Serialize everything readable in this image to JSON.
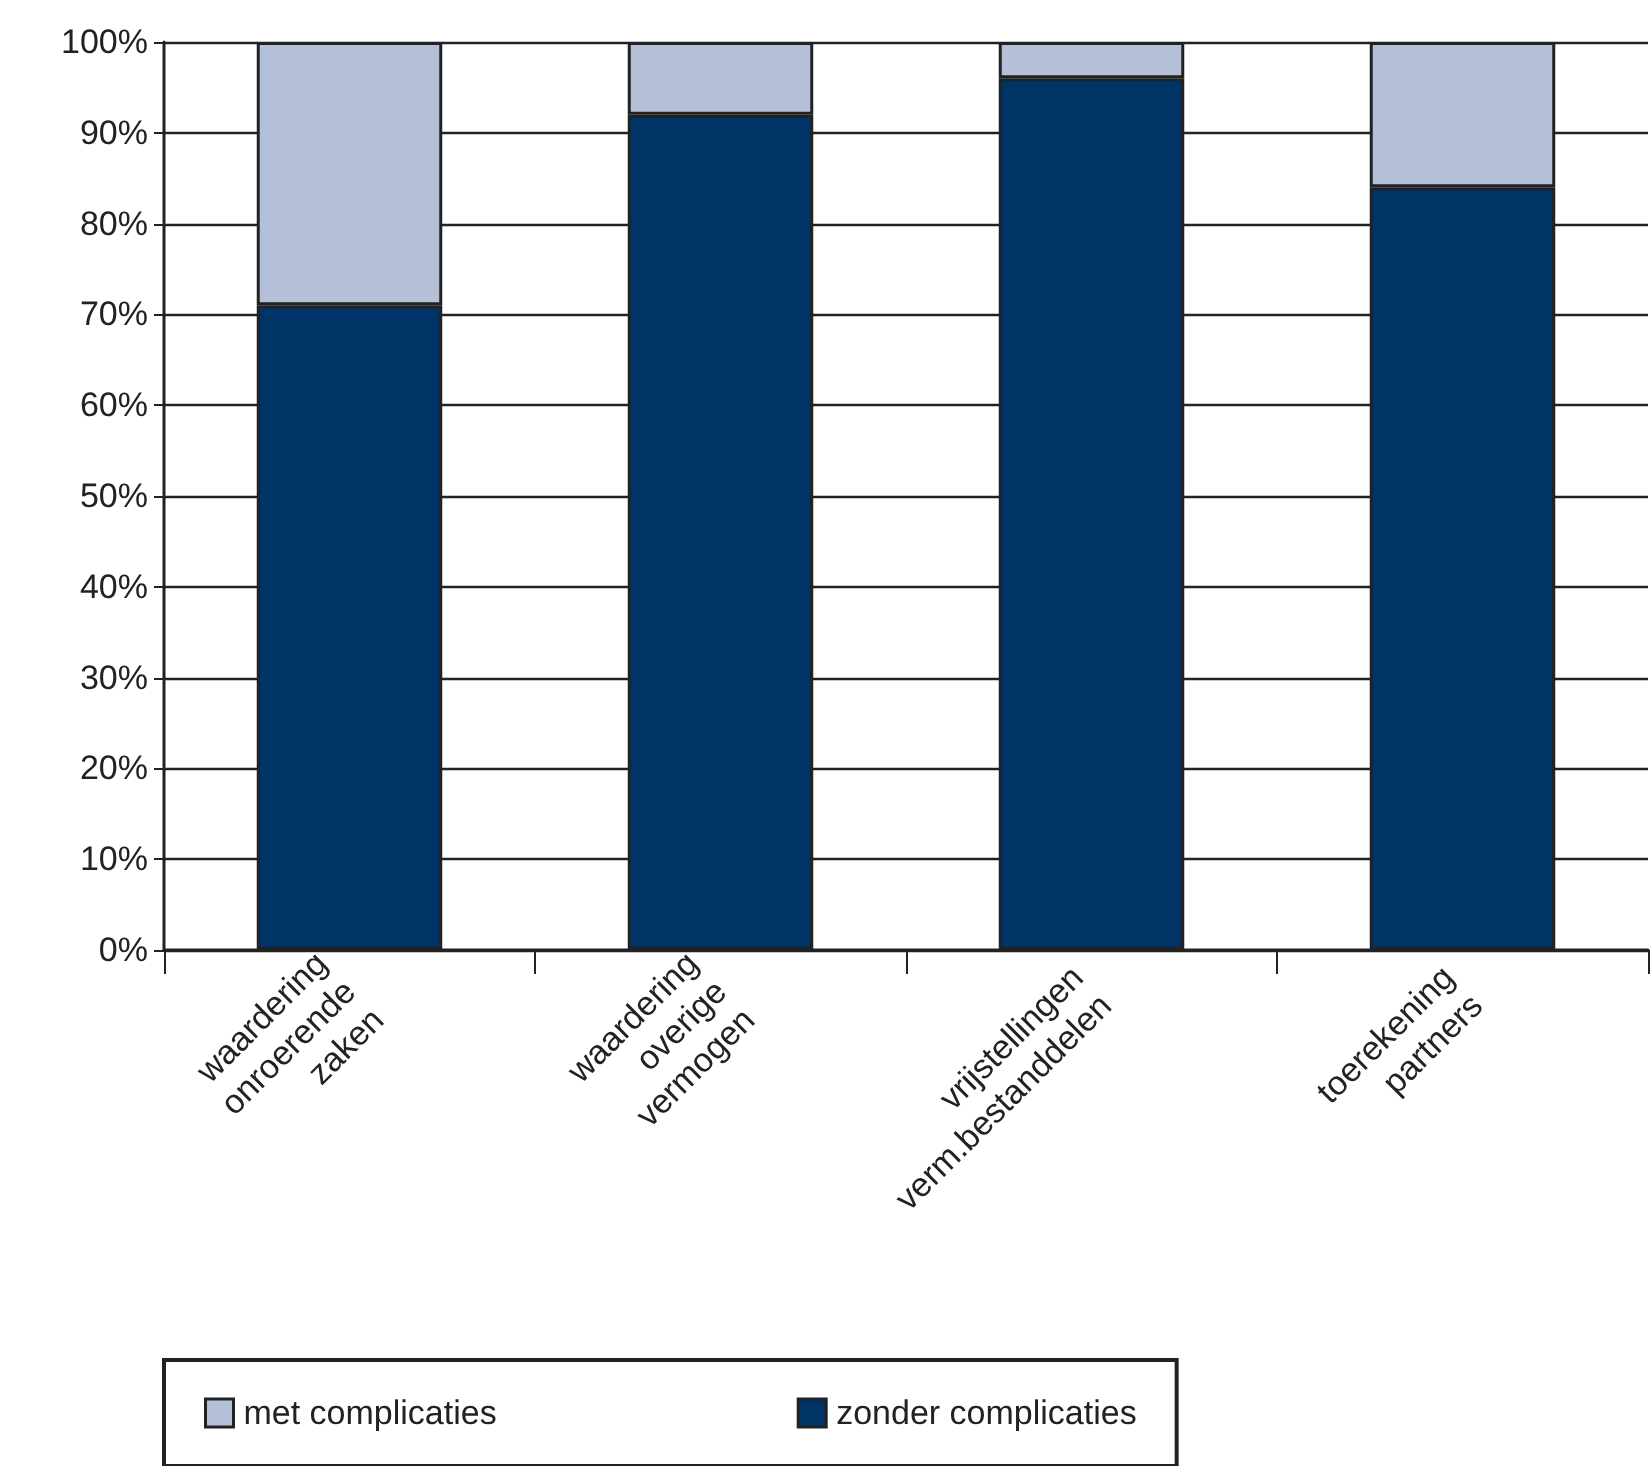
{
  "chart_data": {
    "type": "bar",
    "stacked": true,
    "categories": [
      "waardering onroerende zaken",
      "waardering overige vermogen",
      "vrijstellingen verm.bestanddelen",
      "toerekening partners"
    ],
    "series": [
      {
        "name": "zonder complicaties",
        "color": "#003366",
        "values": [
          71,
          92,
          96,
          84
        ]
      },
      {
        "name": "met complicaties",
        "color": "#b3c0d8",
        "values": [
          29,
          8,
          4,
          16
        ]
      }
    ],
    "ylim": [
      0,
      100
    ],
    "yticks": [
      {
        "value": 0,
        "label": "0%"
      },
      {
        "value": 10,
        "label": "10%"
      },
      {
        "value": 20,
        "label": "20%"
      },
      {
        "value": 30,
        "label": "30%"
      },
      {
        "value": 40,
        "label": "40%"
      },
      {
        "value": 50,
        "label": "50%"
      },
      {
        "value": 60,
        "label": "60%"
      },
      {
        "value": 70,
        "label": "70%"
      },
      {
        "value": 80,
        "label": "80%"
      },
      {
        "value": 90,
        "label": "90%"
      },
      {
        "value": 100,
        "label": "100%"
      }
    ],
    "grid": "y",
    "legend": "bottom"
  }
}
